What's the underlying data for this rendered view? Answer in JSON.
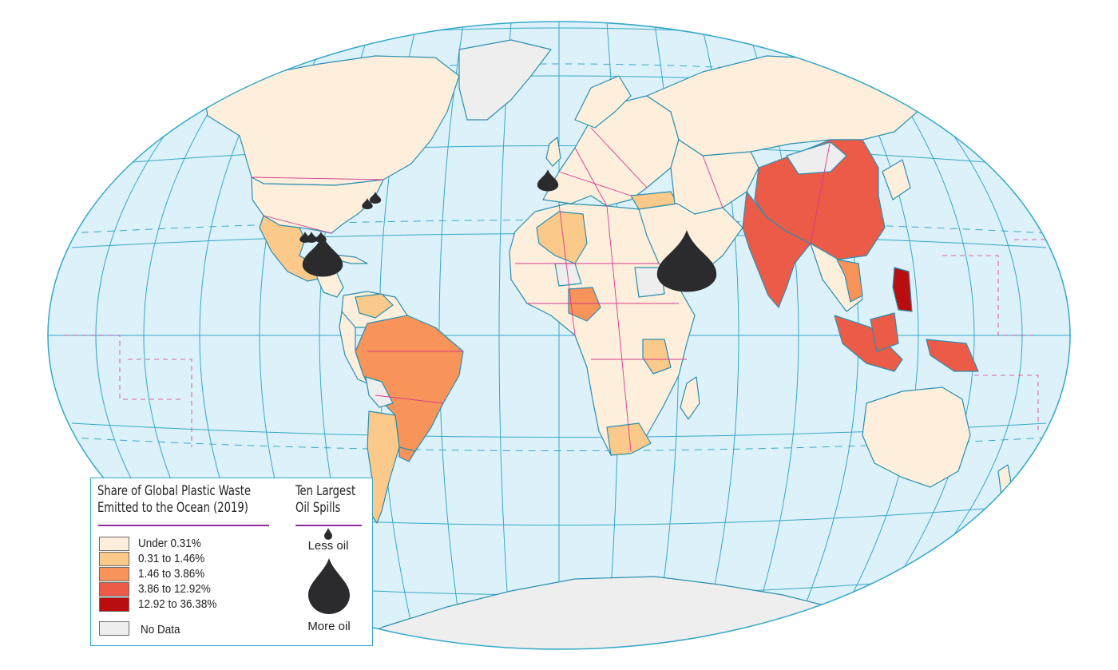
{
  "legend": {
    "plastic_title_line1": "Share of Global Plastic Waste",
    "plastic_title_line2": "Emitted to the Ocean (2019)",
    "spill_title_line1": "Ten Largest",
    "spill_title_line2": "Oil Spills",
    "categories": [
      {
        "label": "Under 0.31%",
        "color": "#fdefdc"
      },
      {
        "label": "0.31 to 1.46%",
        "color": "#fbc98a"
      },
      {
        "label": "1.46 to 3.86%",
        "color": "#f89359"
      },
      {
        "label": "3.86 to 12.92%",
        "color": "#ec5b47"
      },
      {
        "label": "12.92 to 36.38%",
        "color": "#b90d10"
      }
    ],
    "no_data": {
      "label": "No Data",
      "color": "#eeeeee"
    },
    "less_oil": "Less oil",
    "more_oil": "More oil"
  },
  "colors": {
    "ocean": "#ddf1fa",
    "graticule": "#35a8c9",
    "coast": "#2b8fb0",
    "border": "#d8388f",
    "oil": "#2b2b2d"
  }
}
